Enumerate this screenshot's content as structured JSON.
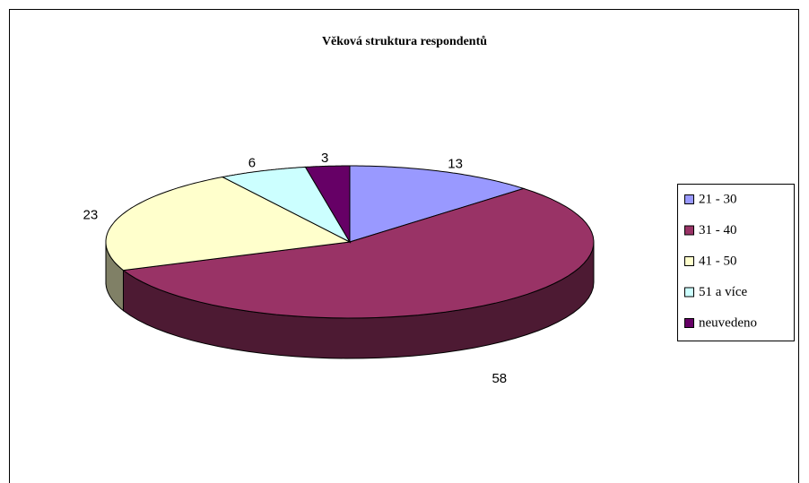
{
  "chart_data": {
    "type": "pie3d",
    "title": "Věková struktura respondentů",
    "categories": [
      "21 - 30",
      "31 - 40",
      "41 - 50",
      "51 a více",
      "neuvedeno"
    ],
    "values": [
      13,
      58,
      23,
      6,
      3
    ],
    "colors": [
      "#9999ff",
      "#993366",
      "#ffffcc",
      "#ccffff",
      "#660066"
    ],
    "legend": "right"
  }
}
